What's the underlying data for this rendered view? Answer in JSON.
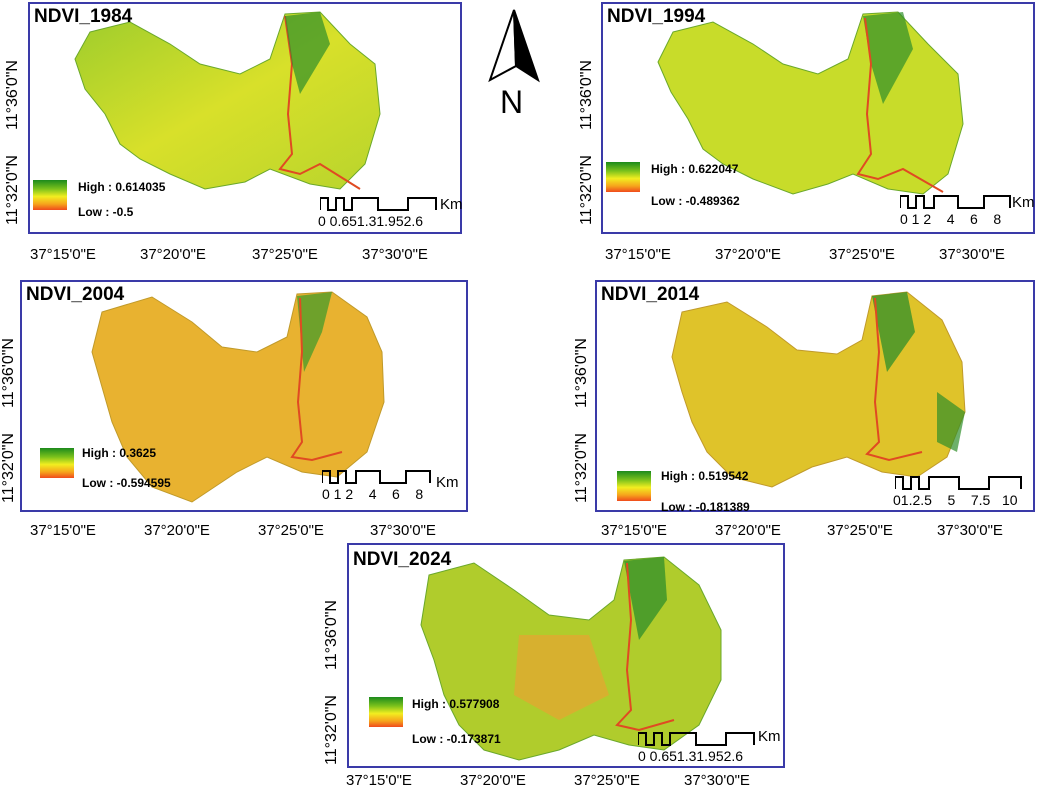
{
  "north_arrow": {
    "letter": "N"
  },
  "axes": {
    "x_ticks": [
      "37°15'0\"E",
      "37°20'0\"E",
      "37°25'0\"E",
      "37°30'0\"E"
    ],
    "y_ticks": [
      "11°36'0\"N",
      "11°32'0\"N"
    ]
  },
  "legend_colors": {
    "high": "#1c8a1c",
    "mid": "#f2ee20",
    "low": "#f04b1c"
  },
  "panels": [
    {
      "title": "NDVI_1984",
      "high": "High : 0.614035",
      "low": "Low : -0.5",
      "scale_labels": "0 0.651.31.952.6",
      "km": "Km"
    },
    {
      "title": "NDVI_1994",
      "high": "High : 0.622047",
      "low": "Low : -0.489362",
      "scale_labels": "0 1 2    4    6    8",
      "km": "Km"
    },
    {
      "title": "NDVI_2004",
      "high": "High : 0.3625",
      "low": "Low : -0.594595",
      "scale_labels": "0 1 2    4    6    8",
      "km": "Km"
    },
    {
      "title": "NDVI_2014",
      "high": "High : 0.519542",
      "low": "Low : -0.181389",
      "scale_labels": "01.2.5    5    7.5   10",
      "km": "Km"
    },
    {
      "title": "NDVI_2024",
      "high": "High : 0.577908",
      "low": "Low : -0.173871",
      "scale_labels": "0 0.651.31.952.6",
      "km": "Km"
    }
  ]
}
